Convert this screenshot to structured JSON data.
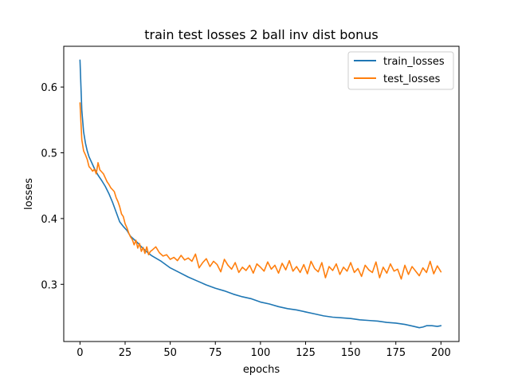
{
  "chart_data": {
    "type": "line",
    "title": "train test losses 2 ball inv dist bonus",
    "xlabel": "epochs",
    "ylabel": "losses",
    "xlim": [
      -9,
      210
    ],
    "ylim": [
      0.213,
      0.662
    ],
    "xticks": [
      0,
      25,
      50,
      75,
      100,
      125,
      150,
      175,
      200
    ],
    "yticks": [
      0.3,
      0.4,
      0.5,
      0.6
    ],
    "grid": false,
    "legend_position": "top-right",
    "series": [
      {
        "name": "train_losses",
        "color": "#1f77b4",
        "x": [
          0,
          1,
          2,
          3,
          4,
          5,
          6,
          8,
          10,
          12,
          14,
          16,
          18,
          20,
          22,
          24,
          26,
          28,
          30,
          32,
          34,
          36,
          38,
          40,
          45,
          50,
          55,
          60,
          65,
          70,
          75,
          80,
          85,
          90,
          95,
          100,
          105,
          110,
          115,
          120,
          125,
          130,
          135,
          140,
          145,
          150,
          155,
          160,
          165,
          170,
          175,
          180,
          185,
          188,
          190,
          192,
          195,
          198,
          200
        ],
        "y": [
          0.641,
          0.565,
          0.532,
          0.515,
          0.503,
          0.494,
          0.488,
          0.476,
          0.466,
          0.458,
          0.449,
          0.438,
          0.425,
          0.41,
          0.395,
          0.388,
          0.382,
          0.373,
          0.368,
          0.363,
          0.357,
          0.352,
          0.347,
          0.343,
          0.335,
          0.325,
          0.318,
          0.311,
          0.305,
          0.299,
          0.294,
          0.29,
          0.285,
          0.281,
          0.278,
          0.273,
          0.27,
          0.266,
          0.263,
          0.261,
          0.258,
          0.255,
          0.252,
          0.25,
          0.249,
          0.248,
          0.246,
          0.245,
          0.244,
          0.242,
          0.241,
          0.239,
          0.236,
          0.234,
          0.235,
          0.237,
          0.237,
          0.236,
          0.237
        ]
      },
      {
        "name": "test_losses",
        "color": "#ff7f0e",
        "x": [
          0,
          1,
          2,
          3,
          4,
          5,
          6,
          7,
          8,
          9,
          10,
          11,
          12,
          13,
          14,
          15,
          16,
          17,
          18,
          19,
          20,
          21,
          22,
          23,
          24,
          25,
          26,
          27,
          28,
          29,
          30,
          31,
          32,
          33,
          34,
          35,
          36,
          37,
          38,
          39,
          40,
          42,
          44,
          46,
          48,
          50,
          52,
          54,
          56,
          58,
          60,
          62,
          64,
          66,
          68,
          70,
          72,
          74,
          76,
          78,
          80,
          82,
          84,
          86,
          88,
          90,
          92,
          94,
          96,
          98,
          100,
          102,
          104,
          106,
          108,
          110,
          112,
          114,
          116,
          118,
          120,
          122,
          124,
          126,
          128,
          130,
          132,
          134,
          136,
          138,
          140,
          142,
          144,
          146,
          148,
          150,
          152,
          154,
          156,
          158,
          160,
          162,
          164,
          166,
          168,
          170,
          172,
          174,
          176,
          178,
          180,
          182,
          184,
          186,
          188,
          190,
          192,
          194,
          196,
          198,
          200
        ],
        "y": [
          0.576,
          0.52,
          0.503,
          0.497,
          0.49,
          0.479,
          0.476,
          0.472,
          0.475,
          0.468,
          0.485,
          0.474,
          0.471,
          0.468,
          0.462,
          0.456,
          0.452,
          0.447,
          0.444,
          0.441,
          0.432,
          0.426,
          0.418,
          0.407,
          0.403,
          0.392,
          0.386,
          0.378,
          0.372,
          0.368,
          0.36,
          0.367,
          0.355,
          0.362,
          0.35,
          0.356,
          0.347,
          0.357,
          0.345,
          0.35,
          0.352,
          0.357,
          0.348,
          0.343,
          0.345,
          0.338,
          0.341,
          0.336,
          0.344,
          0.337,
          0.34,
          0.335,
          0.346,
          0.325,
          0.333,
          0.339,
          0.327,
          0.335,
          0.33,
          0.319,
          0.338,
          0.329,
          0.323,
          0.333,
          0.318,
          0.326,
          0.321,
          0.329,
          0.317,
          0.331,
          0.326,
          0.32,
          0.334,
          0.323,
          0.329,
          0.317,
          0.332,
          0.322,
          0.336,
          0.32,
          0.327,
          0.318,
          0.33,
          0.316,
          0.335,
          0.324,
          0.319,
          0.333,
          0.31,
          0.327,
          0.321,
          0.331,
          0.315,
          0.326,
          0.32,
          0.333,
          0.318,
          0.324,
          0.312,
          0.329,
          0.322,
          0.318,
          0.334,
          0.31,
          0.326,
          0.317,
          0.331,
          0.32,
          0.323,
          0.308,
          0.329,
          0.315,
          0.327,
          0.32,
          0.313,
          0.325,
          0.318,
          0.335,
          0.316,
          0.328,
          0.319
        ]
      }
    ]
  }
}
